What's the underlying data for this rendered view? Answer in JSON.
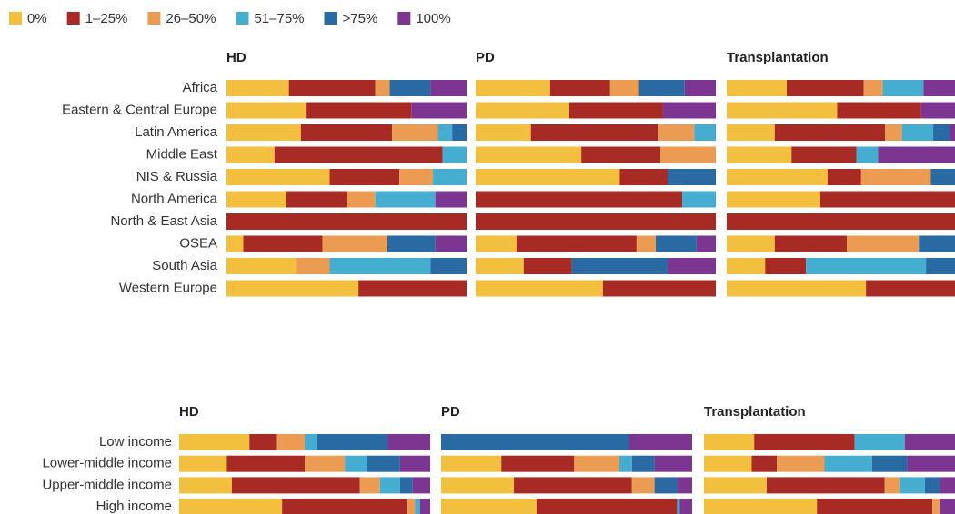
{
  "chart_data": {
    "type": "bar",
    "orientation": "horizontal",
    "stacked": true,
    "xlim": [
      0,
      100
    ],
    "legend": {
      "names": [
        "0%",
        "1–25%",
        "26–50%",
        "51–75%",
        ">75%",
        "100%"
      ],
      "colors": [
        "#f2bf3f",
        "#a72a24",
        "#ec9c52",
        "#45add0",
        "#2a6aa3",
        "#7d3592"
      ]
    },
    "groups": [
      {
        "categories": [
          "Africa",
          "Eastern & Central Europe",
          "Latin America",
          "Middle East",
          "NIS & Russia",
          "North America",
          "North & East Asia",
          "OSEA",
          "South Asia",
          "Western Europe"
        ],
        "panels": [
          {
            "title": "HD",
            "segments": [
              {
                "values": [
                  26,
                  33,
                  31,
                  20,
                  43,
                  25,
                  0,
                  7,
                  29,
                  55
                ]
              },
              {
                "values": [
                  36,
                  44,
                  38,
                  70,
                  29,
                  25,
                  100,
                  33,
                  0,
                  45
                ]
              },
              {
                "values": [
                  6,
                  0,
                  19,
                  0,
                  14,
                  12,
                  0,
                  27,
                  14,
                  0
                ]
              },
              {
                "values": [
                  0,
                  0,
                  6,
                  10,
                  14,
                  25,
                  0,
                  0,
                  42,
                  0
                ]
              },
              {
                "values": [
                  17,
                  0,
                  6,
                  0,
                  0,
                  0,
                  0,
                  20,
                  15,
                  0
                ]
              },
              {
                "values": [
                  15,
                  23,
                  0,
                  0,
                  0,
                  13,
                  0,
                  13,
                  0,
                  0
                ]
              }
            ]
          },
          {
            "title": "PD",
            "segments": [
              {
                "values": [
                  31,
                  39,
                  23,
                  44,
                  60,
                  0,
                  0,
                  17,
                  20,
                  53
                ]
              },
              {
                "values": [
                  25,
                  39,
                  53,
                  33,
                  20,
                  86,
                  100,
                  50,
                  20,
                  47
                ]
              },
              {
                "values": [
                  12,
                  0,
                  15,
                  23,
                  0,
                  0,
                  0,
                  8,
                  0,
                  0
                ]
              },
              {
                "values": [
                  0,
                  0,
                  9,
                  0,
                  0,
                  14,
                  0,
                  0,
                  0,
                  0
                ]
              },
              {
                "values": [
                  19,
                  0,
                  0,
                  0,
                  20,
                  0,
                  0,
                  17,
                  40,
                  0
                ]
              },
              {
                "values": [
                  13,
                  22,
                  0,
                  0,
                  0,
                  0,
                  0,
                  8,
                  20,
                  0
                ]
              }
            ]
          },
          {
            "title": "Transplantation",
            "segments": [
              {
                "values": [
                  25,
                  46,
                  20,
                  27,
                  42,
                  39,
                  0,
                  20,
                  16,
                  58
                ]
              },
              {
                "values": [
                  32,
                  35,
                  46,
                  27,
                  14,
                  61,
                  100,
                  30,
                  17,
                  42
                ]
              },
              {
                "values": [
                  8,
                  0,
                  7,
                  0,
                  29,
                  0,
                  0,
                  30,
                  0,
                  0
                ]
              },
              {
                "values": [
                  17,
                  0,
                  13,
                  9,
                  0,
                  0,
                  0,
                  0,
                  50,
                  0
                ]
              },
              {
                "values": [
                  0,
                  0,
                  7,
                  0,
                  15,
                  0,
                  0,
                  20,
                  17,
                  0
                ]
              },
              {
                "values": [
                  18,
                  19,
                  7,
                  37,
                  0,
                  0,
                  0,
                  0,
                  0,
                  0
                ]
              }
            ]
          }
        ]
      },
      {
        "categories": [
          "Low income",
          "Lower-middle income",
          "Upper-middle income",
          "High income"
        ],
        "panels": [
          {
            "title": "HD",
            "segments": [
              {
                "values": [
                  28,
                  19,
                  21,
                  41
                ]
              },
              {
                "values": [
                  11,
                  31,
                  51,
                  50
                ]
              },
              {
                "values": [
                  11,
                  16,
                  8,
                  3
                ]
              },
              {
                "values": [
                  5,
                  9,
                  8,
                  2
                ]
              },
              {
                "values": [
                  28,
                  13,
                  5,
                  0
                ]
              },
              {
                "values": [
                  17,
                  12,
                  7,
                  4
                ]
              }
            ]
          },
          {
            "title": "PD",
            "segments": [
              {
                "values": [
                  0,
                  24,
                  29,
                  38
                ]
              },
              {
                "values": [
                  0,
                  29,
                  47,
                  56
                ]
              },
              {
                "values": [
                  0,
                  18,
                  9,
                  0
                ]
              },
              {
                "values": [
                  0,
                  5,
                  0,
                  1
                ]
              },
              {
                "values": [
                  75,
                  9,
                  9,
                  0
                ]
              },
              {
                "values": [
                  25,
                  15,
                  6,
                  5
                ]
              }
            ]
          },
          {
            "title": "Transplantation",
            "segments": [
              {
                "values": [
                  20,
                  19,
                  25,
                  45
                ]
              },
              {
                "values": [
                  40,
                  10,
                  47,
                  46
                ]
              },
              {
                "values": [
                  0,
                  19,
                  6,
                  3
                ]
              },
              {
                "values": [
                  20,
                  19,
                  10,
                  0
                ]
              },
              {
                "values": [
                  0,
                  14,
                  6,
                  0
                ]
              },
              {
                "values": [
                  20,
                  19,
                  6,
                  6
                ]
              }
            ]
          }
        ]
      }
    ]
  }
}
